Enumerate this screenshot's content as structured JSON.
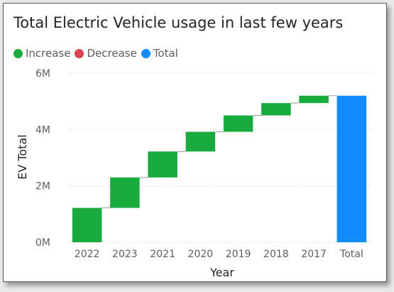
{
  "chart_data": {
    "type": "waterfall",
    "title": "Total Electric Vehicle usage in last few years",
    "xlabel": "Year",
    "ylabel": "EV Total",
    "categories": [
      "2022",
      "2023",
      "2021",
      "2020",
      "2019",
      "2018",
      "2017",
      "Total"
    ],
    "values": [
      1.22,
      1.08,
      0.92,
      0.7,
      0.58,
      0.44,
      0.26,
      5.2
    ],
    "kinds": [
      "increase",
      "increase",
      "increase",
      "increase",
      "increase",
      "increase",
      "increase",
      "total"
    ],
    "ylim": [
      0,
      6
    ],
    "y_unit": "M",
    "yticks": [
      "0M",
      "2M",
      "4M",
      "6M"
    ],
    "grid": true,
    "legend": {
      "position": "top-left",
      "entries": [
        {
          "label": "Increase",
          "color": "#1aab40"
        },
        {
          "label": "Decrease",
          "color": "#d64550"
        },
        {
          "label": "Total",
          "color": "#118dff"
        }
      ]
    }
  }
}
